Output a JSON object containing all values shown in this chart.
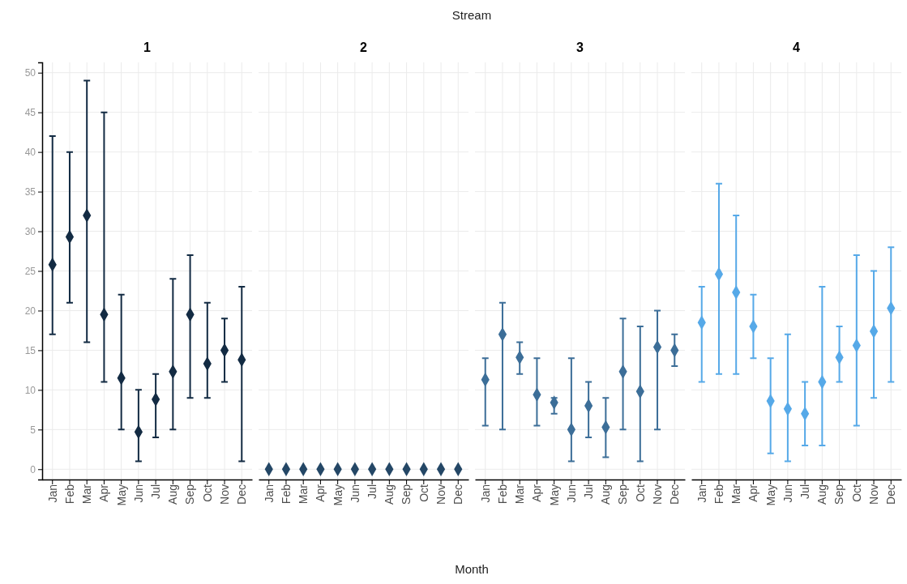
{
  "chart_data": [
    {
      "type": "scatter",
      "title": "1",
      "annotations": [
        "Stream",
        "Month"
      ],
      "categories": [
        "Jan",
        "Feb",
        "Mar",
        "Apr",
        "May",
        "Jun",
        "Jul",
        "Aug",
        "Sep",
        "Oct",
        "Nov",
        "Dec"
      ],
      "marker": "diamond",
      "grid": true,
      "ylim": [
        -1.3,
        51.3
      ],
      "yticks": [
        0,
        5,
        10,
        15,
        20,
        25,
        30,
        35,
        40,
        45,
        50
      ],
      "series": [
        {
          "color": "#132b43",
          "values": [
            25.8,
            29.3,
            32,
            19.5,
            11.5,
            4.7,
            8.8,
            12.3,
            19.5,
            13.3,
            15,
            13.8
          ],
          "errors": [
            [
              17,
              42
            ],
            [
              21,
              40
            ],
            [
              16,
              49
            ],
            [
              11,
              45
            ],
            [
              5,
              22
            ],
            [
              1,
              10
            ],
            [
              4,
              12
            ],
            [
              5,
              24
            ],
            [
              9,
              27
            ],
            [
              9,
              21
            ],
            [
              11,
              19
            ],
            [
              1,
              23
            ]
          ]
        }
      ]
    },
    {
      "type": "scatter",
      "title": "2",
      "categories": [
        "Jan",
        "Feb",
        "Mar",
        "Apr",
        "May",
        "Jun",
        "Jul",
        "Aug",
        "Sep",
        "Oct",
        "Nov",
        "Dec"
      ],
      "marker": "diamond",
      "grid": true,
      "tick_labels": "x",
      "ylim": [
        -1.3,
        51.3
      ],
      "yticks": [
        0,
        5,
        10,
        15,
        20,
        25,
        30,
        35,
        40,
        45,
        50
      ],
      "series": [
        {
          "color": "#244766",
          "values": [
            0,
            0,
            0,
            0,
            0,
            0,
            0,
            0,
            0,
            0,
            0,
            0
          ]
        }
      ]
    },
    {
      "type": "scatter",
      "title": "3",
      "categories": [
        "Jan",
        "Feb",
        "Mar",
        "Apr",
        "May",
        "Jun",
        "Jul",
        "Aug",
        "Sep",
        "Oct",
        "Nov",
        "Dec"
      ],
      "marker": "diamond",
      "grid": true,
      "tick_labels": "x",
      "ylim": [
        -1.3,
        51.3
      ],
      "yticks": [
        0,
        5,
        10,
        15,
        20,
        25,
        30,
        35,
        40,
        45,
        50
      ],
      "series": [
        {
          "color": "#3c6e98",
          "values": [
            11.3,
            17,
            14.1,
            9.4,
            8.4,
            5,
            8,
            5.3,
            12.3,
            9.8,
            15.4,
            15
          ],
          "errors": [
            [
              5.5,
              14
            ],
            [
              5,
              21
            ],
            [
              12,
              16
            ],
            [
              5.5,
              14
            ],
            [
              7,
              9
            ],
            [
              1,
              14
            ],
            [
              4,
              11
            ],
            [
              1.5,
              9
            ],
            [
              5,
              19
            ],
            [
              1,
              18
            ],
            [
              5,
              20
            ],
            [
              13,
              17
            ]
          ]
        }
      ]
    },
    {
      "type": "scatter",
      "title": "4",
      "categories": [
        "Jan",
        "Feb",
        "Mar",
        "Apr",
        "May",
        "Jun",
        "Jul",
        "Aug",
        "Sep",
        "Oct",
        "Nov",
        "Dec"
      ],
      "marker": "diamond",
      "grid": true,
      "tick_labels": "x",
      "ylim": [
        -1.3,
        51.3
      ],
      "yticks": [
        0,
        5,
        10,
        15,
        20,
        25,
        30,
        35,
        40,
        45,
        50
      ],
      "series": [
        {
          "color": "#56a9e8",
          "values": [
            18.5,
            24.6,
            22.3,
            18,
            8.6,
            7.6,
            7,
            11,
            14.1,
            15.6,
            17.4,
            20.3
          ],
          "errors": [
            [
              11,
              23
            ],
            [
              12,
              36
            ],
            [
              12,
              32
            ],
            [
              14,
              22
            ],
            [
              2,
              14
            ],
            [
              1,
              17
            ],
            [
              3,
              11
            ],
            [
              3,
              23
            ],
            [
              11,
              18
            ],
            [
              5.5,
              27
            ],
            [
              9,
              25
            ],
            [
              11,
              28
            ]
          ]
        }
      ]
    }
  ]
}
